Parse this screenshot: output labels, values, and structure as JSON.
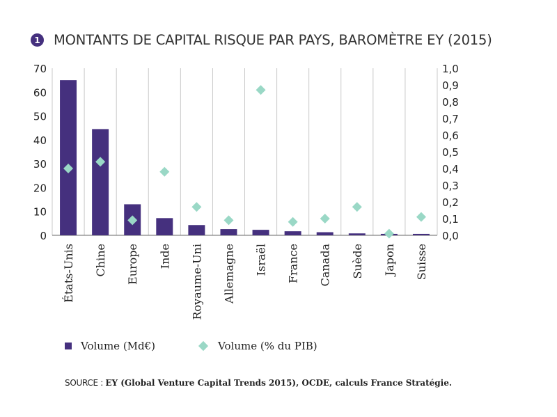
{
  "title_number": "1",
  "source": {
    "label": "SOURCE :",
    "text": "EY (Global Venture Capital Trends 2015), OCDE, calculs France Stratégie."
  },
  "chart_data": {
    "type": "bar",
    "title": "MONTANTS DE CAPITAL RISQUE PAR PAYS, BAROMÈTRE EY (2015)",
    "categories": [
      "États-Unis",
      "Chine",
      "Europe",
      "Inde",
      "Royaume-Uni",
      "Allemagne",
      "Israël",
      "France",
      "Canada",
      "Suède",
      "Japon",
      "Suisse"
    ],
    "series": [
      {
        "name": "Volume (Md€)",
        "type": "bar",
        "axis": "left",
        "color": "#45307e",
        "values": [
          65,
          44.5,
          13,
          7.2,
          4.3,
          2.6,
          2.3,
          1.7,
          1.3,
          0.8,
          0.6,
          0.6
        ]
      },
      {
        "name": "Volume (% du PIB)",
        "type": "scatter",
        "marker": "diamond",
        "axis": "right",
        "color": "#9ad8c6",
        "values": [
          0.4,
          0.44,
          0.09,
          0.38,
          0.17,
          0.09,
          0.87,
          0.08,
          0.1,
          0.17,
          0.01,
          0.11
        ]
      }
    ],
    "y_left": {
      "ylim": [
        0,
        70
      ],
      "ticks": [
        "0",
        "10",
        "20",
        "30",
        "40",
        "50",
        "60",
        "70"
      ]
    },
    "y_right": {
      "ylim": [
        0,
        1.0
      ],
      "ticks": [
        "0,0",
        "0,1",
        "0,2",
        "0,3",
        "0,4",
        "0,5",
        "0,6",
        "0,7",
        "0,8",
        "0,9",
        "1,0"
      ]
    },
    "grid": "vertical",
    "legend_position": "bottom"
  }
}
